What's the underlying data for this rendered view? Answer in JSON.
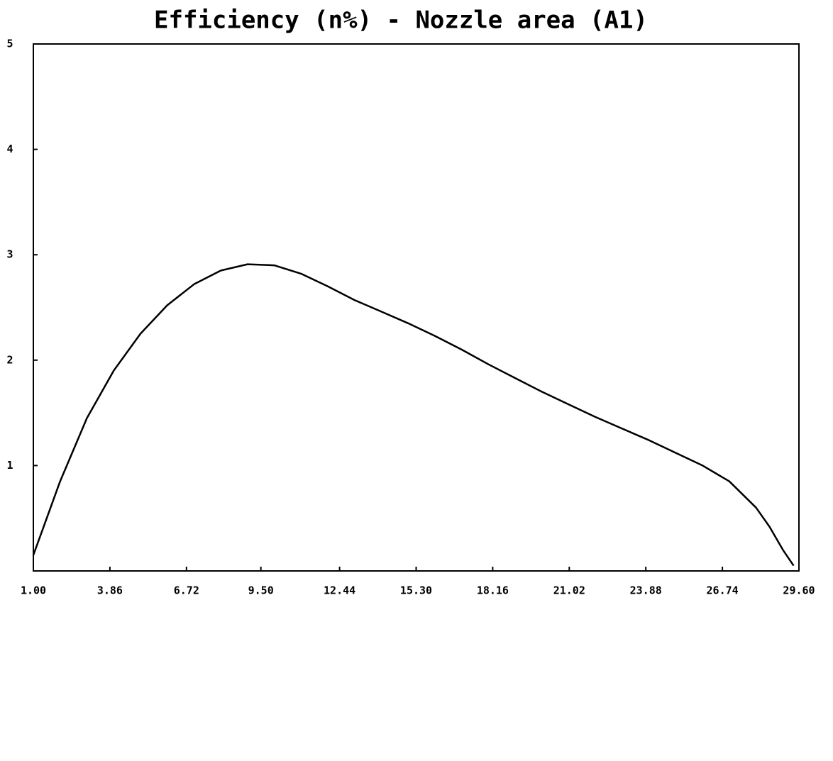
{
  "chart_data": {
    "type": "line",
    "title": "Efficiency (n%) - Nozzle area (A1)",
    "x": [
      1,
      2,
      3,
      4,
      5,
      6,
      7,
      8,
      9,
      10,
      11,
      12,
      13,
      14,
      15,
      16,
      17,
      18,
      19,
      20,
      21,
      22,
      23,
      24,
      25,
      26,
      27,
      28,
      28.5,
      29,
      29.4
    ],
    "values": [
      0.15,
      0.85,
      1.45,
      1.9,
      2.25,
      2.52,
      2.72,
      2.85,
      2.91,
      2.9,
      2.82,
      2.7,
      2.57,
      2.46,
      2.35,
      2.23,
      2.1,
      1.96,
      1.83,
      1.7,
      1.58,
      1.46,
      1.35,
      1.24,
      1.12,
      1.0,
      0.85,
      0.6,
      0.42,
      0.2,
      0.05
    ],
    "color": "#000000",
    "xlim": [
      1,
      29.6
    ],
    "xticks": [
      {
        "value": 1,
        "label": "1.00"
      },
      3.86,
      6.72,
      {
        "value": 9.5,
        "label": "9.50"
      },
      12.44,
      {
        "value": 15.3,
        "label": "15.30"
      },
      18.16,
      21.02,
      23.88,
      26.74,
      {
        "value": 29.6,
        "label": "29.60"
      }
    ],
    "ylim": [
      0,
      5
    ],
    "yticks": [
      1,
      2,
      3,
      4,
      5
    ]
  }
}
